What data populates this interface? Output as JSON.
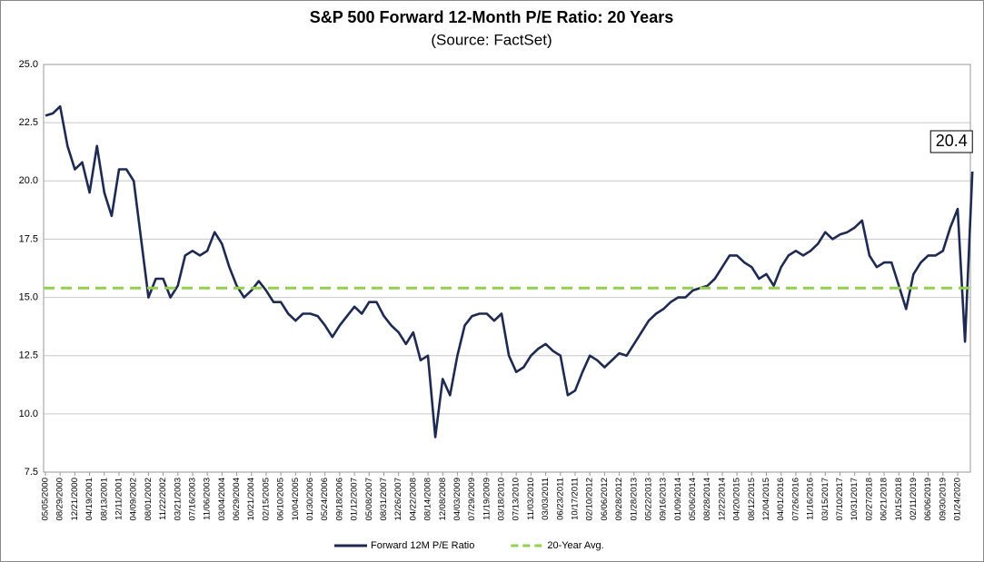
{
  "chart_data": {
    "type": "line",
    "title": "S&P 500 Forward 12-Month P/E Ratio: 20 Years",
    "subtitle": "(Source: FactSet)",
    "categories": [
      "05/05/2000",
      null,
      "08/29/2000",
      null,
      "12/21/2000",
      null,
      "04/19/2001",
      null,
      "08/13/2001",
      null,
      "12/11/2001",
      null,
      "04/09/2002",
      null,
      "08/01/2002",
      null,
      "11/22/2002",
      null,
      "03/21/2003",
      null,
      "07/16/2003",
      null,
      "11/06/2003",
      null,
      "03/04/2004",
      null,
      "06/29/2004",
      null,
      "10/21/2004",
      null,
      "02/15/2005",
      null,
      "06/10/2005",
      null,
      "10/04/2005",
      null,
      "01/30/2006",
      null,
      "05/24/2006",
      null,
      "09/18/2006",
      null,
      "01/12/2007",
      null,
      "05/08/2007",
      null,
      "08/31/2007",
      null,
      "12/26/2007",
      null,
      "04/22/2008",
      null,
      "08/14/2008",
      null,
      "12/08/2008",
      null,
      "04/03/2009",
      null,
      "07/29/2009",
      null,
      "11/19/2009",
      null,
      "03/18/2010",
      null,
      "07/13/2010",
      null,
      "11/03/2010",
      null,
      "03/03/2011",
      null,
      "06/23/2011",
      null,
      "10/17/2011",
      null,
      "02/10/2012",
      null,
      "06/06/2012",
      null,
      "09/28/2012",
      null,
      "01/28/2013",
      null,
      "05/22/2013",
      null,
      "09/16/2013",
      null,
      "01/09/2014",
      null,
      "05/06/2014",
      null,
      "08/28/2014",
      null,
      "12/22/2014",
      null,
      "04/20/2015",
      null,
      "08/12/2015",
      null,
      "12/04/2015",
      null,
      "04/01/2016",
      null,
      "07/26/2016",
      null,
      "11/16/2016",
      null,
      "03/15/2017",
      null,
      "07/10/2017",
      null,
      "10/31/2017",
      null,
      "02/27/2018",
      null,
      "06/21/2018",
      null,
      "10/15/2018",
      null,
      "02/11/2019",
      null,
      "06/06/2019",
      null,
      "09/30/2019",
      null,
      "01/24/2020",
      null,
      null
    ],
    "series": [
      {
        "name": "Forward 12M P/E Ratio",
        "color": "#1f2a52",
        "values": [
          22.8,
          22.9,
          23.2,
          21.5,
          20.5,
          20.8,
          19.5,
          21.5,
          19.5,
          18.5,
          20.5,
          20.5,
          20.0,
          17.5,
          15.0,
          15.8,
          15.8,
          15.0,
          15.5,
          16.8,
          17.0,
          16.8,
          17.0,
          17.8,
          17.3,
          16.3,
          15.5,
          15.0,
          15.3,
          15.7,
          15.3,
          14.8,
          14.8,
          14.3,
          14.0,
          14.3,
          14.3,
          14.2,
          13.8,
          13.3,
          13.8,
          14.2,
          14.6,
          14.3,
          14.8,
          14.8,
          14.2,
          13.8,
          13.5,
          13.0,
          13.5,
          12.3,
          12.5,
          9.0,
          11.5,
          10.8,
          12.5,
          13.8,
          14.2,
          14.3,
          14.3,
          14.0,
          14.3,
          12.5,
          11.8,
          12.0,
          12.5,
          12.8,
          13.0,
          12.7,
          12.5,
          10.8,
          11.0,
          11.8,
          12.5,
          12.3,
          12.0,
          12.3,
          12.6,
          12.5,
          13.0,
          13.5,
          14.0,
          14.3,
          14.5,
          14.8,
          15.0,
          15.0,
          15.3,
          15.4,
          15.5,
          15.8,
          16.3,
          16.8,
          16.8,
          16.5,
          16.3,
          15.8,
          16.0,
          15.5,
          16.3,
          16.8,
          17.0,
          16.8,
          17.0,
          17.3,
          17.8,
          17.5,
          17.7,
          17.8,
          18.0,
          18.3,
          16.8,
          16.3,
          16.5,
          16.5,
          15.5,
          14.5,
          16.0,
          16.5,
          16.8,
          16.8,
          17.0,
          18.0,
          18.8,
          13.1,
          20.4
        ],
        "value_labels": [
          null,
          null,
          null,
          null,
          null,
          null,
          null,
          null,
          null,
          null,
          null,
          null,
          null,
          null,
          null,
          null,
          null,
          null,
          null,
          null,
          null,
          null,
          null,
          null,
          null,
          null,
          null,
          null,
          null,
          null,
          null,
          null,
          null,
          null,
          null,
          null,
          null,
          null,
          null,
          null,
          null,
          null,
          null,
          null,
          null,
          null,
          null,
          null,
          null,
          null,
          null,
          null,
          null,
          null,
          null,
          null,
          null,
          null,
          null,
          null,
          null,
          null,
          null,
          null,
          null,
          null,
          null,
          null,
          null,
          null,
          null,
          null,
          null,
          null,
          null,
          null,
          null,
          null,
          null,
          null,
          null,
          null,
          null,
          null,
          null,
          null,
          null,
          null,
          null,
          null,
          null,
          null,
          null,
          null,
          null,
          null,
          null,
          null,
          null,
          null,
          null,
          null,
          null,
          null,
          null,
          null,
          null,
          null,
          null,
          null,
          null,
          null,
          null,
          null,
          null,
          null,
          null,
          null,
          null,
          null,
          null,
          null,
          null,
          null,
          null,
          null,
          "20.4"
        ]
      },
      {
        "name": "20-Year Avg.",
        "color": "#92d050",
        "value": 15.4,
        "style": "dashed"
      }
    ],
    "ylim": [
      7.5,
      25
    ],
    "yticks": [
      7.5,
      {
        "value": 10,
        "label": "10.0"
      },
      12.5,
      {
        "value": 15,
        "label": "15.0"
      },
      17.5,
      {
        "value": 20,
        "label": "20.0"
      },
      22.5,
      {
        "value": 25,
        "label": "25.0"
      }
    ],
    "grid": true
  }
}
